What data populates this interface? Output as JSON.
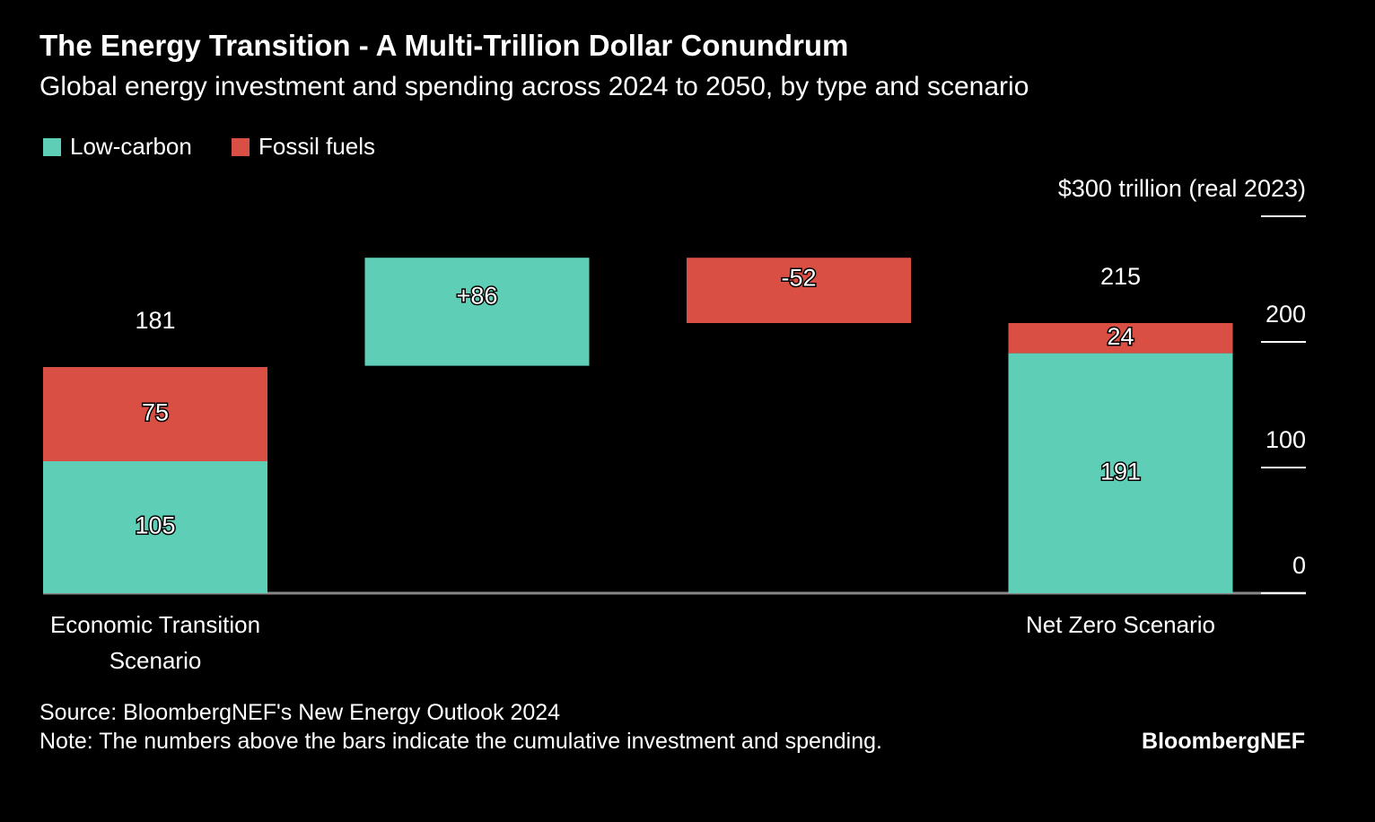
{
  "chart_data": {
    "type": "waterfall",
    "title": "The Energy Transition - A Multi-Trillion Dollar Conundrum",
    "subtitle": "Global energy investment and spending across 2024 to 2050, by type and scenario",
    "categories": [
      "Economic Transition Scenario",
      null,
      null,
      "Net Zero Scenario"
    ],
    "series": [
      {
        "name": "Low-carbon",
        "color": "#5ecfb6",
        "values": [
          105,
          86,
          null,
          191
        ],
        "value_labels": [
          "105",
          "+86",
          null,
          "191"
        ]
      },
      {
        "name": "Fossil fuels",
        "color": "#d94f44",
        "values": [
          75,
          null,
          -52,
          24
        ]
      }
    ],
    "totals": [
      181,
      null,
      null,
      215
    ],
    "ylim": [
      0,
      300
    ],
    "yticks": [
      0,
      100,
      200,
      {
        "value": 300,
        "label": "$300 trillion (real 2023)"
      }
    ],
    "source": "Source: BloombergNEF's New Energy Outlook 2024",
    "note": "Note: The numbers above the bars indicate the cumulative investment and spending.",
    "brand": "BloombergNEF"
  }
}
